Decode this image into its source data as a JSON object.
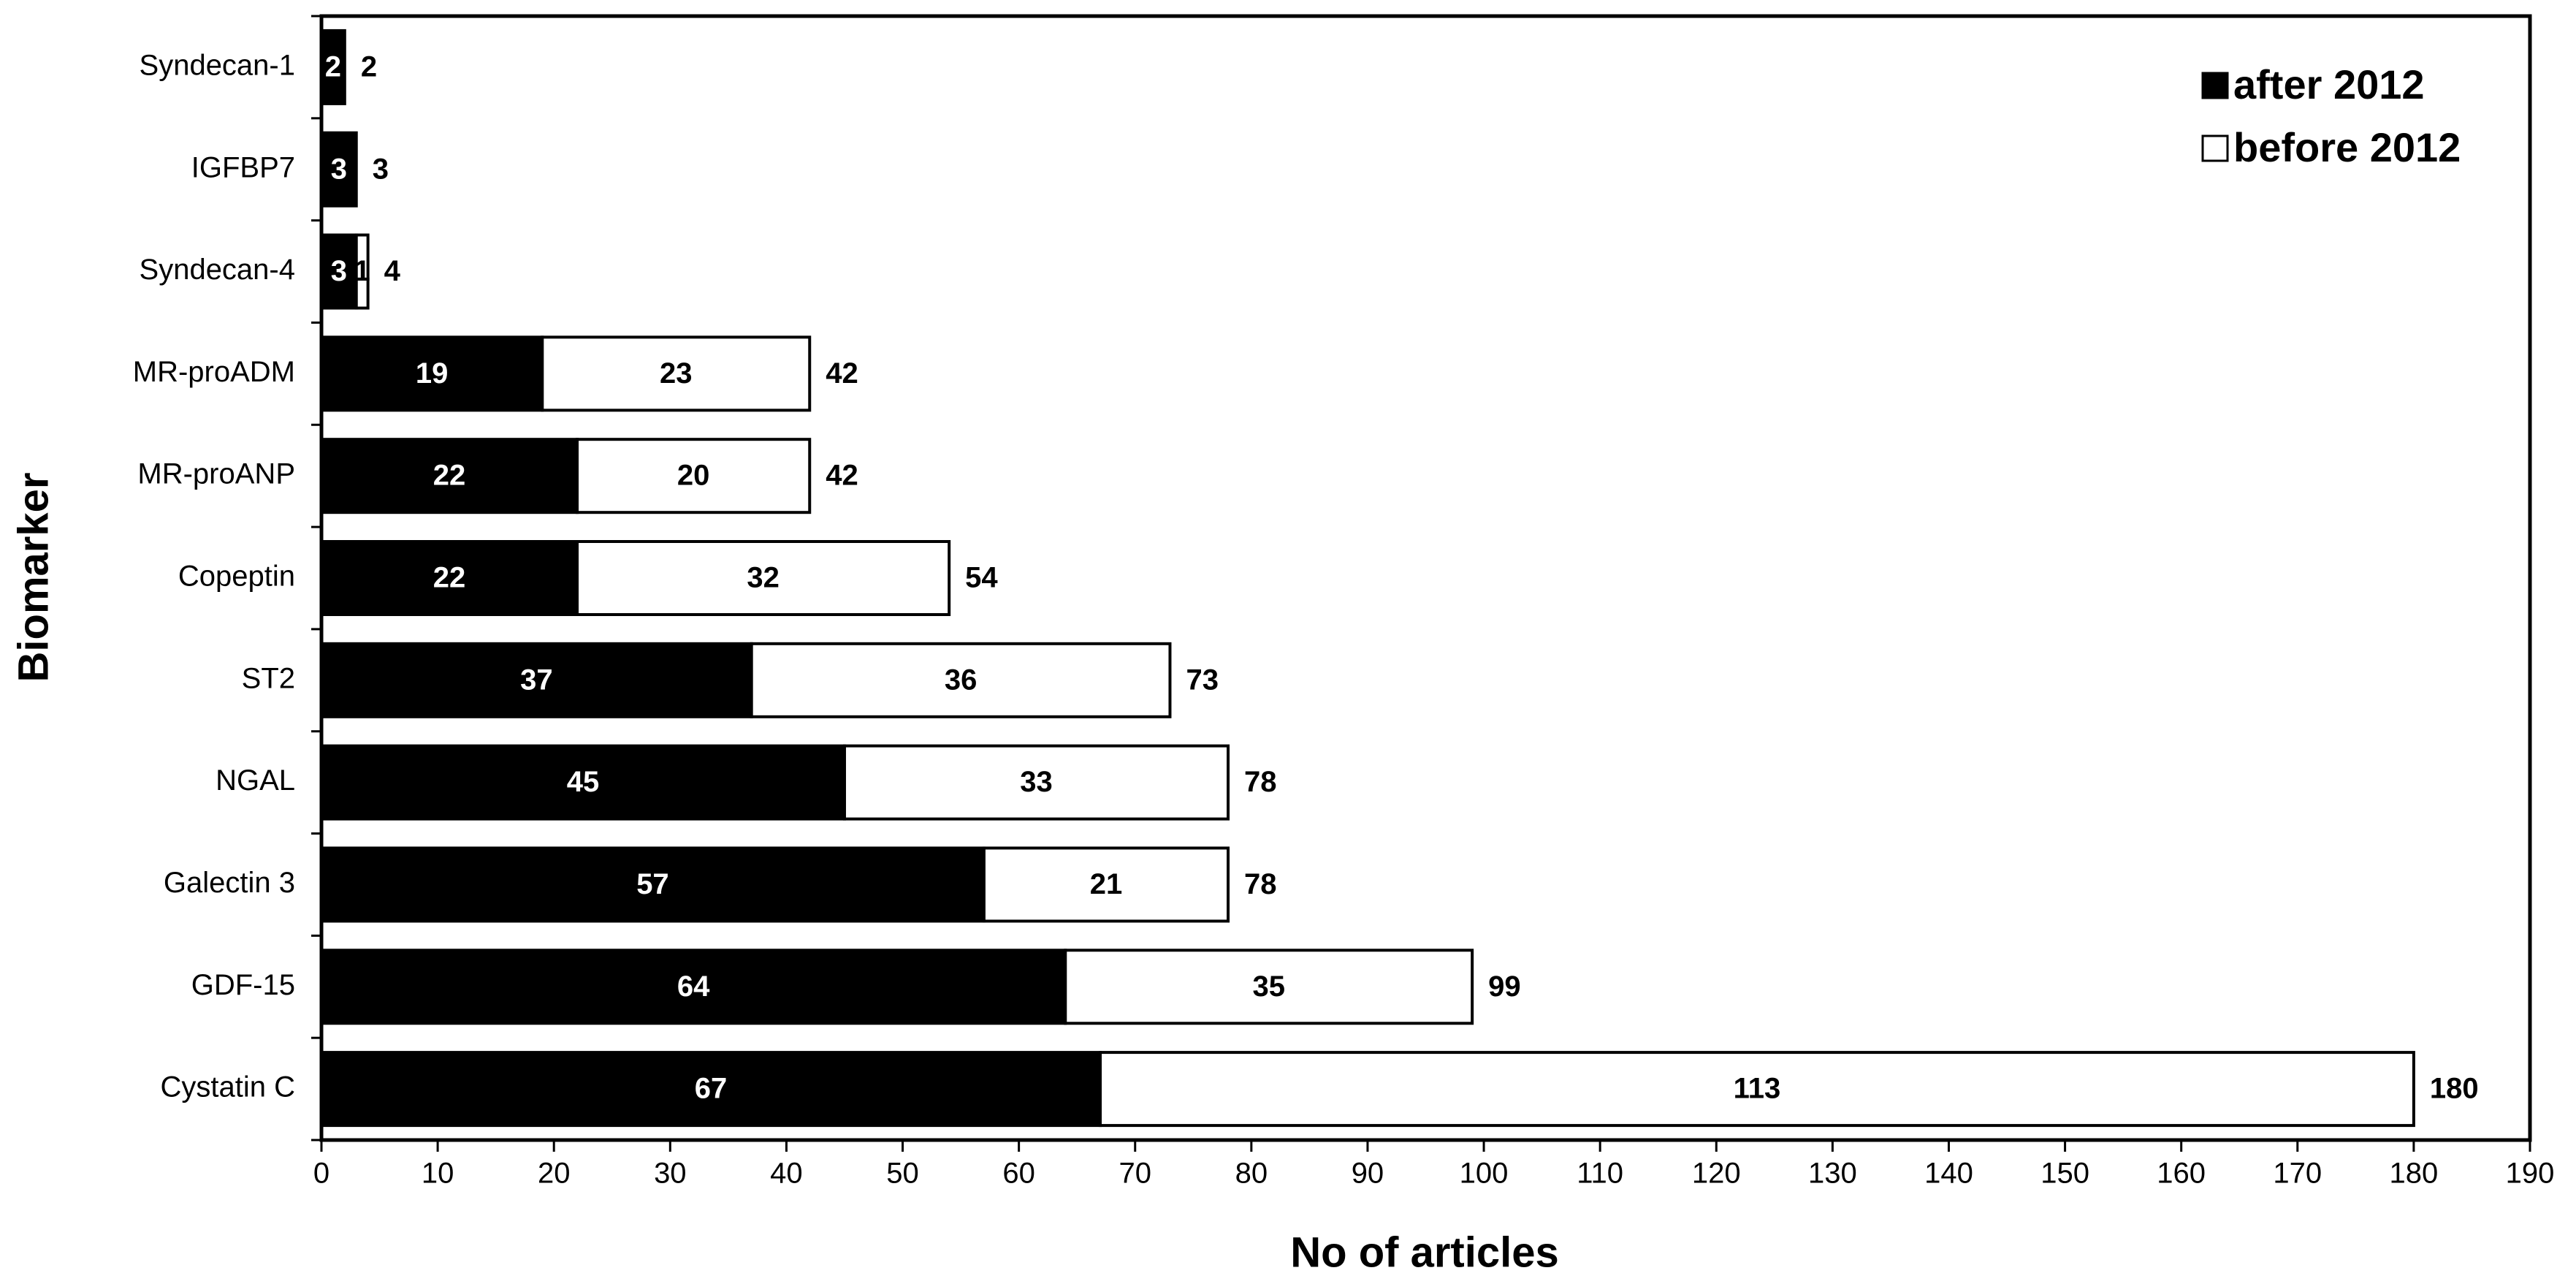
{
  "chart_data": {
    "type": "stacked-barh",
    "x_label": "No of articles",
    "y_label": "Biomarker",
    "categories": [
      "Syndecan-1",
      "IGFBP7",
      "Syndecan-4",
      "MR-proADM",
      "MR-proANP",
      "Copeptin",
      "ST2",
      "NGAL",
      "Galectin 3",
      "GDF-15",
      "Cystatin C"
    ],
    "series": [
      {
        "name": "after 2012",
        "color": "#000000",
        "label_color": "#ffffff",
        "values": [
          2,
          3,
          3,
          19,
          22,
          22,
          37,
          45,
          57,
          64,
          67
        ]
      },
      {
        "name": "before 2012",
        "color": "#ffffff",
        "label_color": "#000000",
        "values": [
          null,
          null,
          1,
          23,
          20,
          32,
          36,
          33,
          21,
          35,
          113
        ]
      }
    ],
    "totals": [
      2,
      3,
      4,
      42,
      42,
      54,
      73,
      78,
      78,
      99,
      180
    ],
    "xlim": [
      0,
      190
    ],
    "xticks": [
      0,
      10,
      20,
      30,
      40,
      50,
      60,
      70,
      80,
      90,
      100,
      110,
      120,
      130,
      140,
      150,
      160,
      170,
      180,
      190
    ],
    "legend": "top-right",
    "grid": false
  }
}
